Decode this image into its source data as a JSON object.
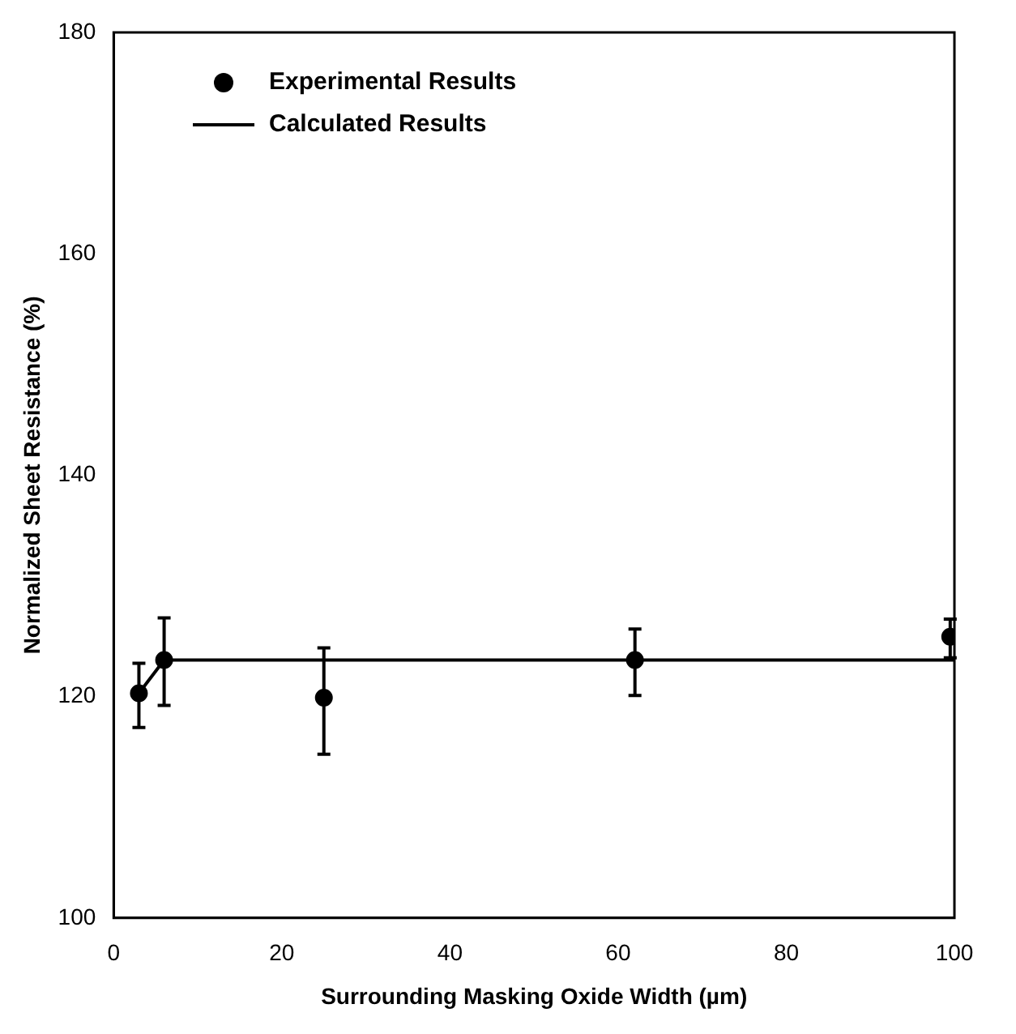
{
  "chart_data": {
    "type": "scatter",
    "xlabel": "Surrounding Masking Oxide Width (µm)",
    "ylabel": "Normalized Sheet Resistance (%)",
    "xlim": [
      0,
      100
    ],
    "xticks": [
      0,
      20,
      40,
      60,
      80,
      100
    ],
    "ylim": [
      100,
      180
    ],
    "yticks": [
      100,
      120,
      140,
      160,
      180
    ],
    "grid": false,
    "legend": "top left",
    "series": [
      {
        "name": "Experimental Results",
        "type": "scatter",
        "color": "#000000",
        "marker": "circle",
        "x": [
          3,
          6,
          25,
          62,
          99.5
        ],
        "values": [
          120.3,
          123.3,
          119.9,
          123.3,
          125.4
        ],
        "errors": [
          [
            117.2,
            123
          ],
          [
            119.2,
            127.1
          ],
          [
            114.8,
            124.4
          ],
          [
            120.1,
            126.1
          ],
          [
            123.5,
            127
          ]
        ]
      },
      {
        "name": "Calculated Results",
        "type": "line",
        "color": "#000000",
        "marker": "none",
        "line_style": "solid",
        "x": [
          3,
          6,
          100
        ],
        "values": [
          120.3,
          123.3,
          123.3
        ]
      }
    ]
  }
}
